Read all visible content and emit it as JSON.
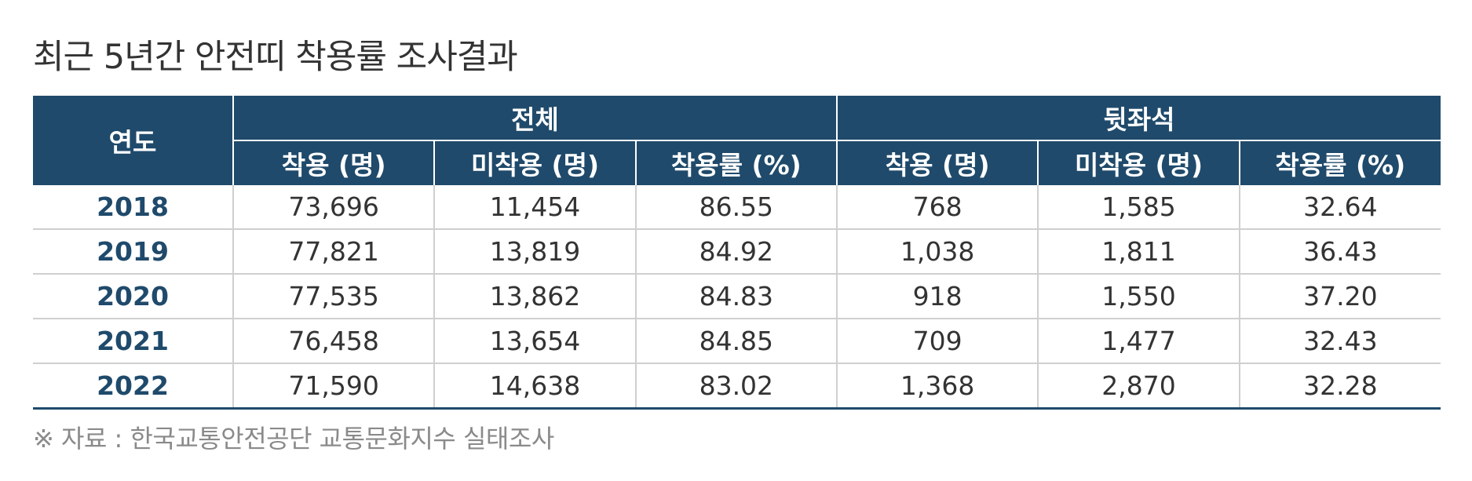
{
  "title": "최근 5년간 안전띠 착용률 조사결과",
  "table": {
    "year_header": "연도",
    "groups": [
      "전체",
      "뒷좌석"
    ],
    "sub_headers": [
      "착용 (명)",
      "미착용 (명)",
      "착용률 (%)",
      "착용 (명)",
      "미착용 (명)",
      "착용률 (%)"
    ],
    "rows": [
      {
        "year": "2018",
        "cells": [
          "73,696",
          "11,454",
          "86.55",
          "768",
          "1,585",
          "32.64"
        ]
      },
      {
        "year": "2019",
        "cells": [
          "77,821",
          "13,819",
          "84.92",
          "1,038",
          "1,811",
          "36.43"
        ]
      },
      {
        "year": "2020",
        "cells": [
          "77,535",
          "13,862",
          "84.83",
          "918",
          "1,550",
          "37.20"
        ]
      },
      {
        "year": "2021",
        "cells": [
          "76,458",
          "13,654",
          "84.85",
          "709",
          "1,477",
          "32.43"
        ]
      },
      {
        "year": "2022",
        "cells": [
          "71,590",
          "14,638",
          "83.02",
          "1,368",
          "2,870",
          "32.28"
        ]
      }
    ]
  },
  "source_note": "※ 자료 : 한국교통안전공단 교통문화지수 실태조사",
  "colors": {
    "header_bg": "#1f4a6b",
    "year_text": "#1f4a6b",
    "grid_line": "#cfcfcf",
    "note_text": "#8a8a8a"
  }
}
